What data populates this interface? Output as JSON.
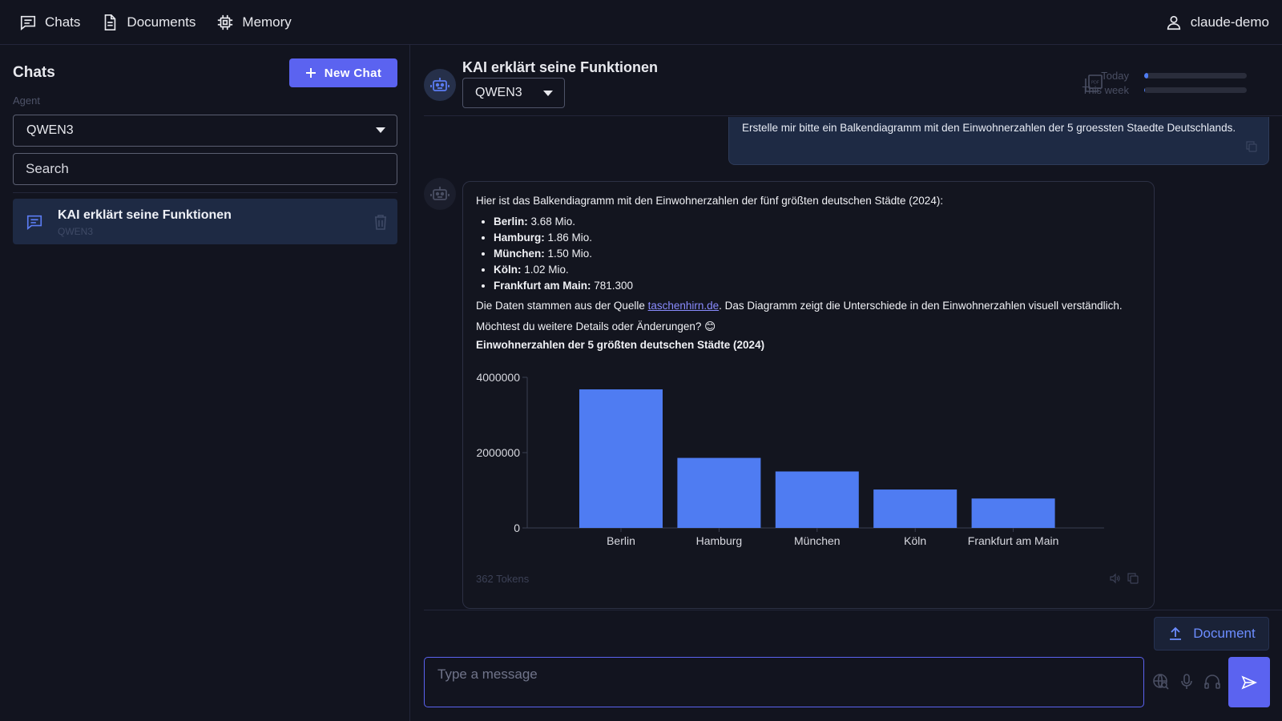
{
  "topbar": {
    "nav": [
      {
        "label": "Chats",
        "icon": "chat-icon"
      },
      {
        "label": "Documents",
        "icon": "document-icon"
      },
      {
        "label": "Memory",
        "icon": "chip-icon"
      }
    ],
    "user": "claude-demo"
  },
  "sidebar": {
    "title": "Chats",
    "new_chat_label": "New Chat",
    "agent_label": "Agent",
    "agent_value": "QWEN3",
    "search_placeholder": "Search",
    "chats": [
      {
        "title": "KAI erklärt seine Funktionen",
        "subtitle": "QWEN3"
      }
    ]
  },
  "main": {
    "title": "KAI erklärt seine Funktionen",
    "model": "QWEN3",
    "usage": {
      "today_label": "Today",
      "today_fraction": 0.04,
      "week_label": "This week",
      "week_fraction": 0.01
    },
    "user_message": "Erstelle mir bitte ein Balkendiagramm mit den Einwohnerzahlen der 5 groessten Staedte Deutschlands.",
    "bot_message": {
      "intro": "Hier ist das Balkendiagramm mit den Einwohnerzahlen der fünf größten deutschen Städte (2024):",
      "items": [
        {
          "city": "Berlin:",
          "value": " 3.68 Mio."
        },
        {
          "city": "Hamburg:",
          "value": " 1.86 Mio."
        },
        {
          "city": "München:",
          "value": " 1.50 Mio."
        },
        {
          "city": "Köln:",
          "value": " 1.02 Mio."
        },
        {
          "city": "Frankfurt am Main:",
          "value": " 781.300"
        }
      ],
      "source_prefix": "Die Daten stammen aus der Quelle ",
      "source_link": "taschenhirn.de",
      "source_suffix": ". Das Diagramm zeigt die Unterschiede in den Einwohnerzahlen visuell verständlich.",
      "question": "Möchtest du weitere Details oder Änderungen? 😊",
      "tokens": "362 Tokens"
    },
    "input_placeholder": "Type a message",
    "document_button": "Document"
  },
  "chart_data": {
    "type": "bar",
    "title": "Einwohnerzahlen der 5 größten deutschen Städte (2024)",
    "categories": [
      "Berlin",
      "Hamburg",
      "München",
      "Köln",
      "Frankfurt am Main"
    ],
    "values": [
      3680000,
      1860000,
      1500000,
      1020000,
      781300
    ],
    "ylim": [
      0,
      4000000
    ],
    "yticks": [
      0,
      2000000,
      4000000
    ],
    "bar_color": "#4f7cf2",
    "grid": false
  },
  "colors": {
    "accent": "#5b63f0",
    "background": "#12141f",
    "selected_chat": "#1e2a44"
  }
}
